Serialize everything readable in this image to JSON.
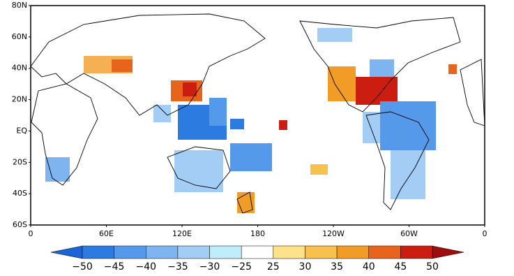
{
  "map": {
    "lat_labels": [
      "80N",
      "60N",
      "40N",
      "20N",
      "EQ",
      "20S",
      "40S",
      "60S"
    ],
    "lon_labels": [
      "0",
      "60E",
      "120E",
      "180",
      "120W",
      "60W",
      "0"
    ],
    "colorbar": {
      "labels": [
        "−50",
        "−45",
        "−40",
        "−35",
        "−30",
        "−25",
        "25",
        "30",
        "35",
        "40",
        "45",
        "50"
      ],
      "colors": [
        "#1a64d8",
        "#2c7be0",
        "#5599ea",
        "#7eb4f0",
        "#a4cdf5",
        "#bfeefa",
        "#ffffff",
        "#fde28a",
        "#f8c14e",
        "#f29c28",
        "#e8631c",
        "#cc1e10",
        "#a00d0d"
      ]
    }
  }
}
